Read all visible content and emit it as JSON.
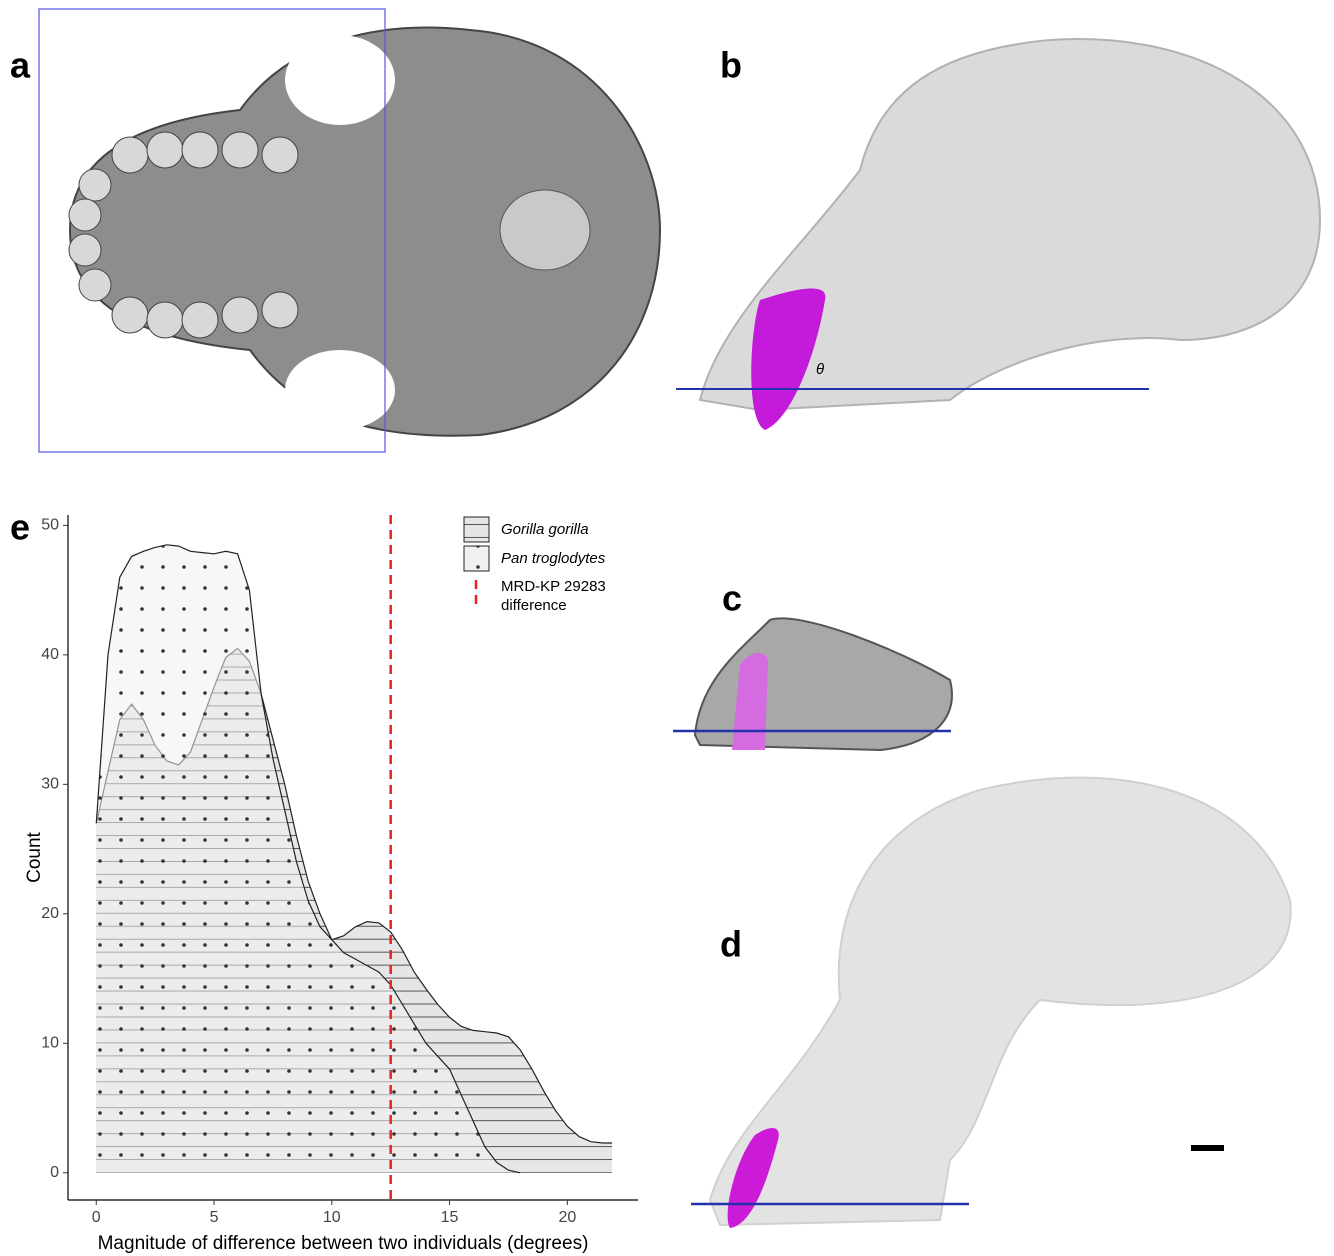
{
  "panels": {
    "a": "a",
    "b": "b",
    "c": "c",
    "d": "d",
    "e": "e"
  },
  "chart_data": {
    "type": "area",
    "xlabel": "Magnitude of difference between two individuals (degrees)",
    "ylabel": "Count",
    "xlim": [
      -1.2,
      23
    ],
    "ylim": [
      -2.1,
      50.8
    ],
    "xticks": [
      0,
      5,
      10,
      15,
      20
    ],
    "yticks": [
      0,
      10,
      20,
      30,
      40,
      50
    ],
    "series": [
      {
        "name": "Gorilla gorilla",
        "color": "#e6e6e6",
        "pattern": "lines",
        "x": [
          0,
          0.5,
          1,
          1.5,
          2,
          2.5,
          3,
          3.5,
          4,
          4.5,
          5,
          5.5,
          6,
          6.5,
          7,
          7.5,
          8,
          8.5,
          9,
          9.5,
          10,
          10.5,
          11,
          11.5,
          12,
          12.5,
          13,
          13.5,
          14,
          14.5,
          15,
          15.5,
          16,
          16.5,
          17,
          17.5,
          18,
          18.5,
          19,
          19.5,
          20,
          20.5,
          21,
          21.5,
          21.9
        ],
        "values": [
          27,
          31,
          35,
          36.2,
          35,
          33,
          31.8,
          31.5,
          32.5,
          35,
          37.5,
          39.8,
          40.5,
          39.5,
          37,
          33.5,
          30,
          26,
          22.5,
          20,
          18,
          18.3,
          19,
          19.4,
          19.3,
          18.6,
          17.2,
          15.5,
          14.2,
          13,
          12,
          11.3,
          11,
          10.9,
          10.8,
          10.5,
          9.5,
          8,
          6.3,
          4.8,
          3.6,
          2.8,
          2.4,
          2.3,
          2.3
        ]
      },
      {
        "name": "Pan troglodytes",
        "color": "#f0f0f0",
        "pattern": "dots",
        "x": [
          0,
          0.5,
          1,
          1.5,
          2,
          2.5,
          3,
          3.5,
          4,
          4.5,
          5,
          5.5,
          6,
          6.5,
          7,
          7.5,
          8,
          8.5,
          9,
          9.5,
          10,
          10.5,
          11,
          11.5,
          12,
          12.5,
          13,
          13.5,
          14,
          14.5,
          15,
          15.5,
          16,
          16.5,
          17,
          17.5,
          18
        ],
        "values": [
          27,
          40,
          46,
          47.6,
          48,
          48.3,
          48.5,
          48.4,
          48,
          47.9,
          47.8,
          48,
          47.8,
          45,
          37,
          32,
          28,
          24,
          21,
          19,
          18,
          17,
          16.5,
          16,
          15.5,
          14.5,
          13,
          11.5,
          10,
          9,
          8,
          6,
          4,
          2,
          0.8,
          0.2,
          0
        ]
      }
    ],
    "reference_line": {
      "x": 12.5,
      "color": "#e8231f",
      "label": [
        "MRD-KP 29283",
        "difference"
      ]
    }
  }
}
